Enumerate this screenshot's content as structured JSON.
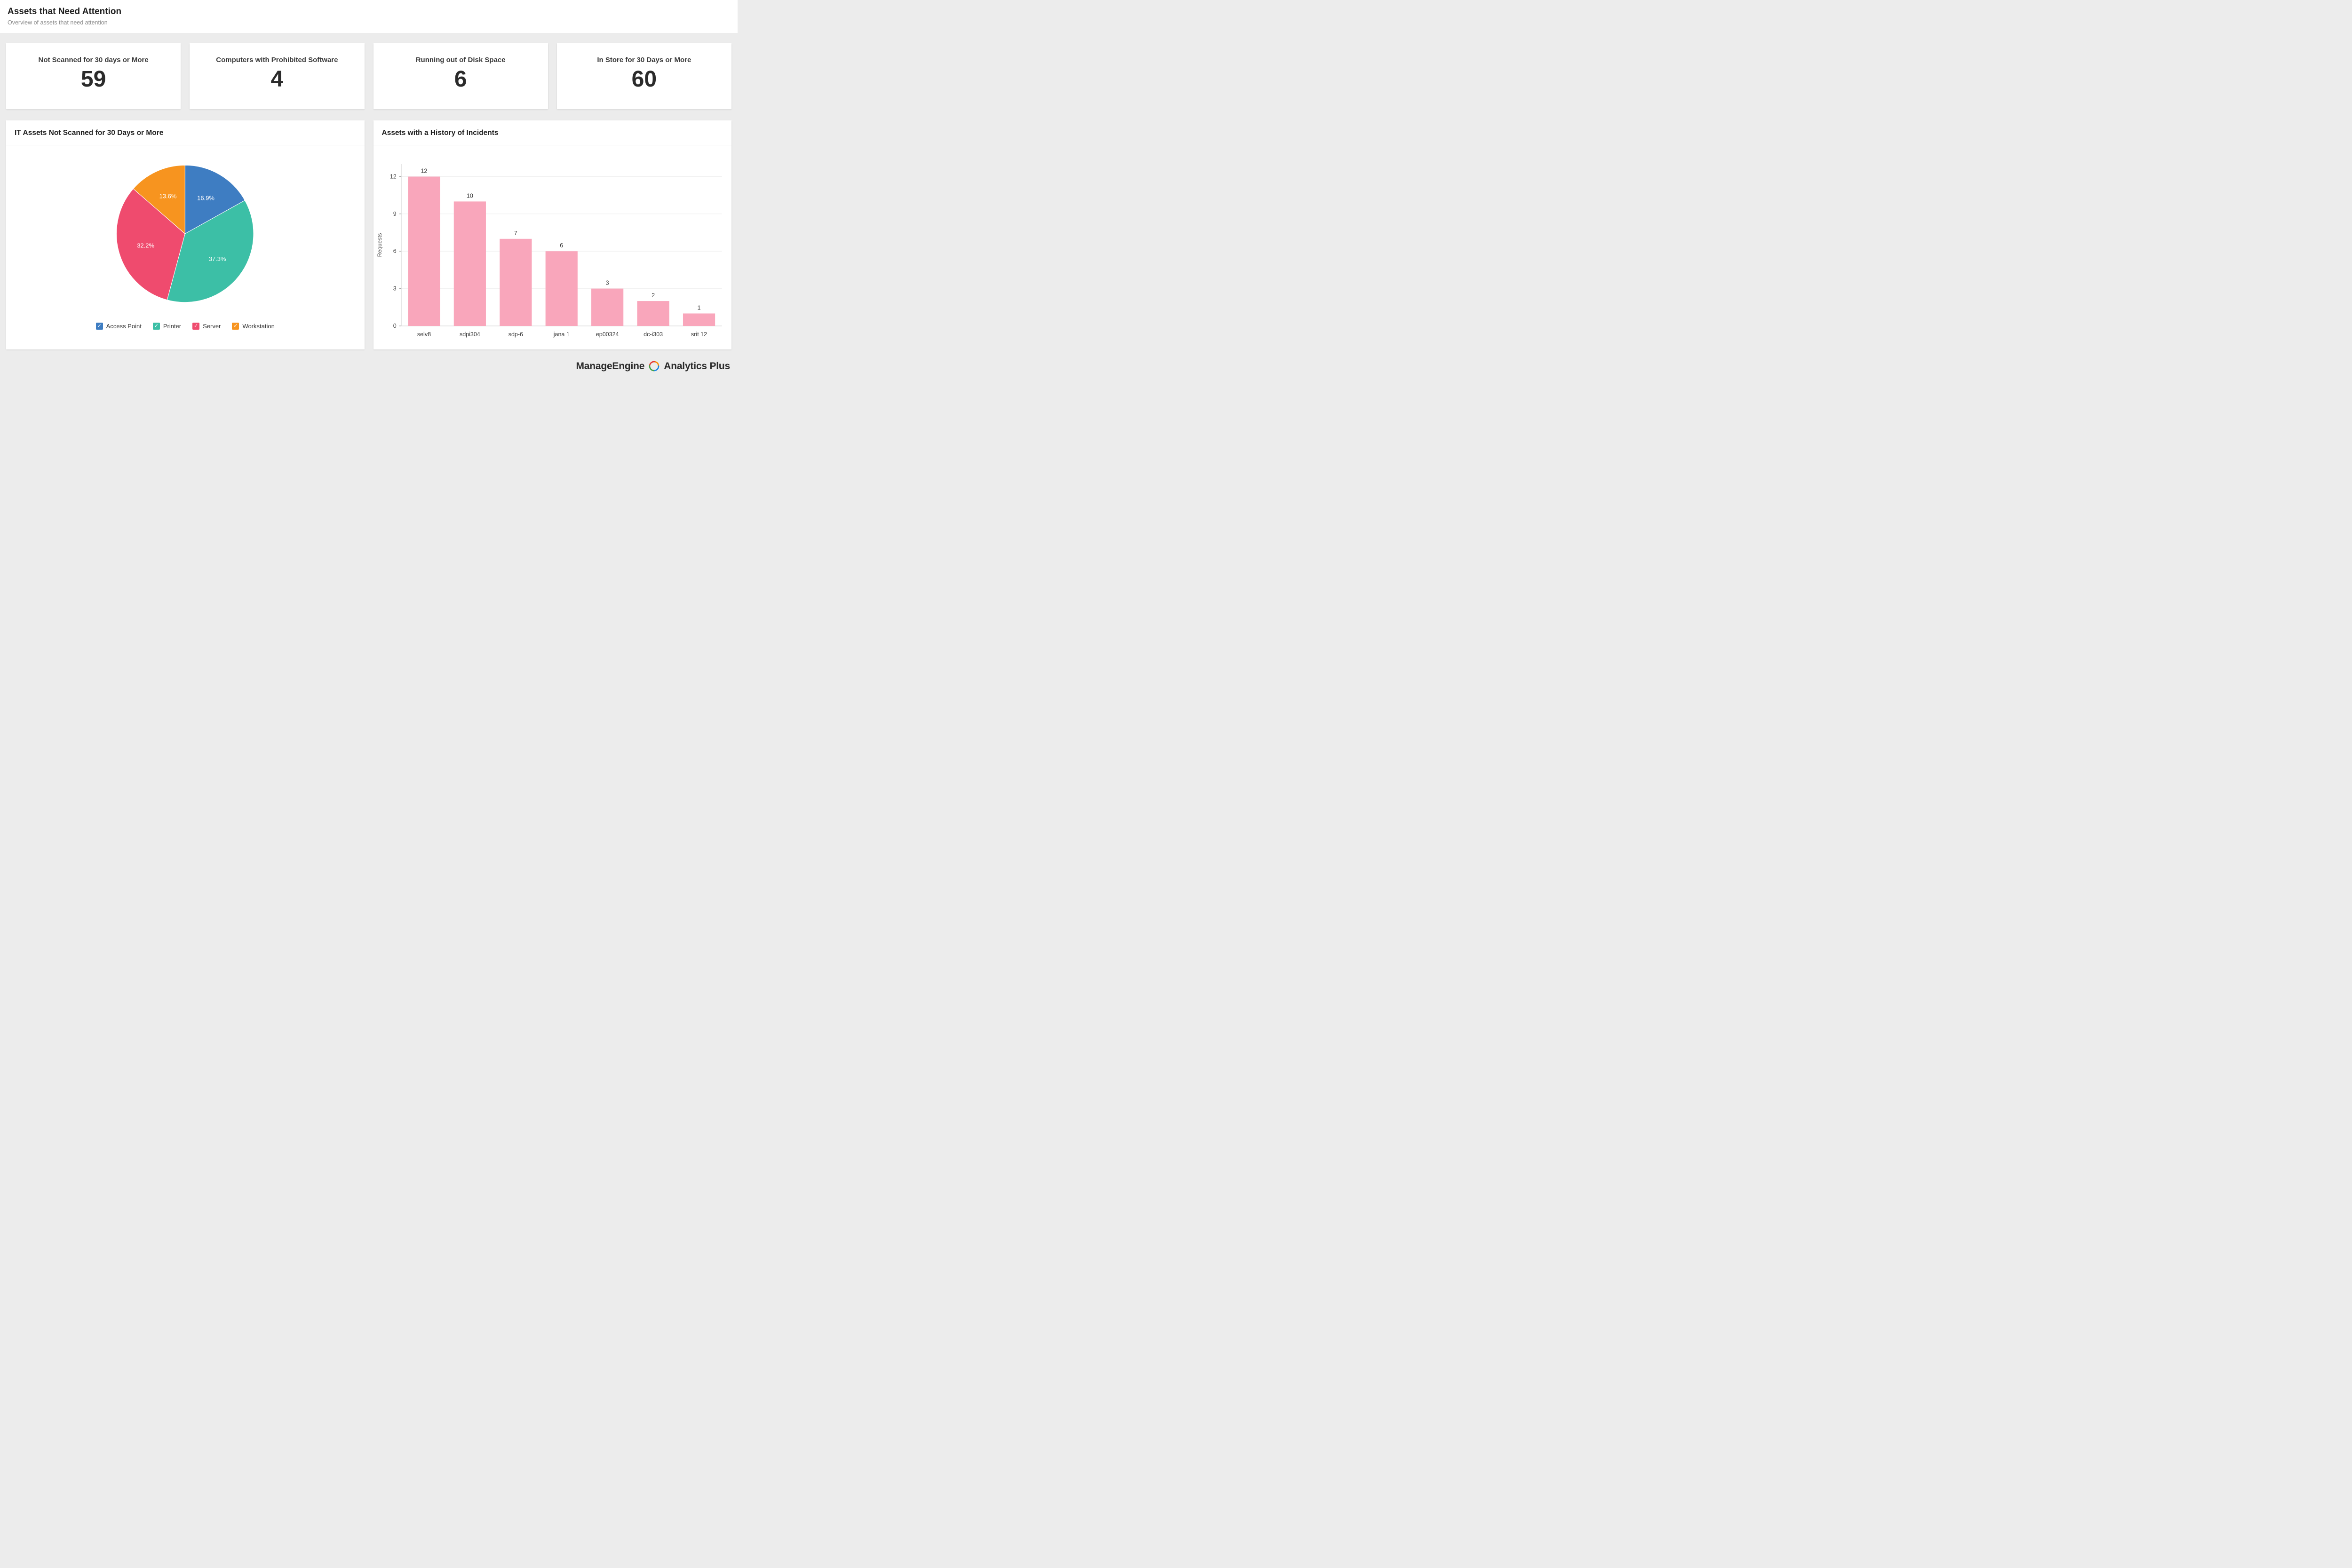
{
  "page": {
    "title": "Assets that Need Attention",
    "subtitle": "Overview of assets that need attention"
  },
  "kpis": [
    {
      "label": "Not Scanned for 30 days or More",
      "value": "59"
    },
    {
      "label": "Computers with Prohibited Software",
      "value": "4"
    },
    {
      "label": "Running out of Disk Space",
      "value": "6"
    },
    {
      "label": "In Store for 30 Days or More",
      "value": "60"
    }
  ],
  "chart_data": [
    {
      "type": "pie",
      "title": "IT Assets Not Scanned for 30 Days or More",
      "labels": [
        "Access Point",
        "Printer",
        "Server",
        "Workstation"
      ],
      "values": [
        16.9,
        37.3,
        32.2,
        13.6
      ],
      "value_suffix": "%",
      "colors": [
        "#3e7dc2",
        "#3cbfa6",
        "#ef4b6e",
        "#f7941f"
      ],
      "legend_position": "bottom",
      "start_angle_deg": -90,
      "direction": "clockwise"
    },
    {
      "type": "bar",
      "title": "Assets with a History of Incidents",
      "categories": [
        "selv8",
        "sdpi304",
        "sdp-6",
        "jana 1",
        "ep00324",
        "dc-i303",
        "srit 12"
      ],
      "values": [
        12,
        10,
        7,
        6,
        3,
        2,
        1
      ],
      "xlabel": "",
      "ylabel": "Requests",
      "yticks": [
        0,
        3,
        6,
        9,
        12
      ],
      "ylim": [
        0,
        13
      ],
      "bar_color": "#f9a6bb",
      "grid": true,
      "legend_position": "none"
    }
  ],
  "branding": {
    "wordmark": "ManageEngine",
    "product": "Analytics Plus",
    "logo_colors": [
      "#e53935",
      "#fb8c00",
      "#1e88e5",
      "#43a047"
    ]
  }
}
